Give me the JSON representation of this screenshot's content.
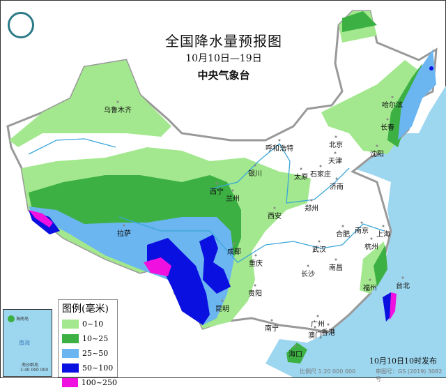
{
  "title": "全国降水量预报图",
  "date_range": "10月10日—19日",
  "issuer": "中央气象台",
  "legend": {
    "title": "图例(毫米)",
    "items": [
      {
        "label": "0~10",
        "color": "#a3e88e"
      },
      {
        "label": "10~25",
        "color": "#3cb043"
      },
      {
        "label": "25~50",
        "color": "#6bb5f0"
      },
      {
        "label": "50~100",
        "color": "#0a10e0"
      },
      {
        "label": "100~250",
        "color": "#f010e0"
      }
    ]
  },
  "cities": [
    "乌鲁木齐",
    "哈尔滨",
    "长春",
    "沈阳",
    "北京",
    "天津",
    "呼和浩特",
    "银川",
    "太原",
    "石家庄",
    "济南",
    "西宁",
    "兰州",
    "郑州",
    "西安",
    "拉萨",
    "成都",
    "合肥",
    "南京",
    "上海",
    "杭州",
    "武汉",
    "重庆",
    "长沙",
    "南昌",
    "贵阳",
    "昆明",
    "福州",
    "台北",
    "南宁",
    "广州",
    "澳门",
    "香港",
    "海口"
  ],
  "inset_labels": {
    "sea": "南海",
    "islands": "南沙群岛",
    "scale": "1:40 000 000",
    "hainan": "海南岛"
  },
  "publish_time": "10月10日10时发布",
  "scale_note": "比例尺 1:20 000 000",
  "review_no": "审图号：GS (2019) 3082号",
  "colors": {
    "sea": "#9dd6ef",
    "border": "#999999",
    "river": "#3aa6d8"
  }
}
